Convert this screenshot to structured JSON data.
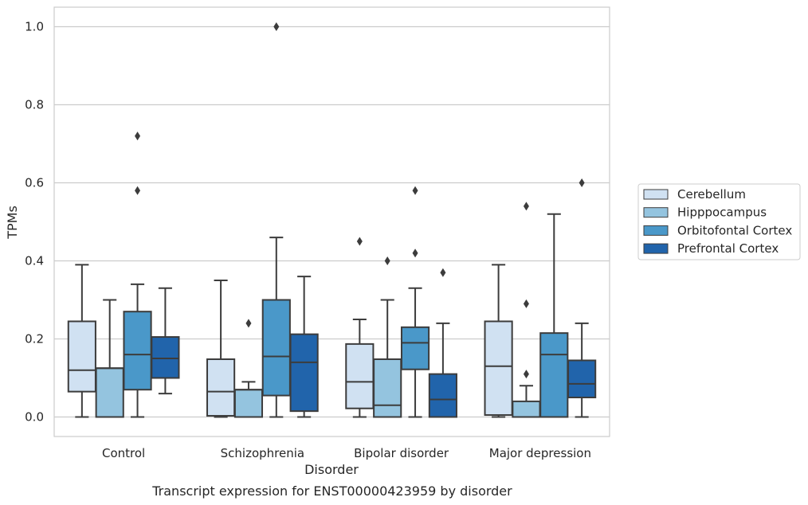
{
  "chart_data": {
    "type": "box",
    "xlabel": "Disorder",
    "ylabel": "TPMs",
    "caption": "Transcript expression for ENST00000423959 by disorder",
    "ylim": [
      -0.05,
      1.05
    ],
    "yticks": [
      "0.0",
      "0.2",
      "0.4",
      "0.6",
      "0.8",
      "1.0"
    ],
    "grid": true,
    "legend_position": "right",
    "categories": [
      "Control",
      "Schizophrenia",
      "Bipolar disorder",
      "Major depression"
    ],
    "series": [
      {
        "name": "Cerebellum",
        "color": "#d0e1f2",
        "boxes": [
          {
            "min": 0.0,
            "q1": 0.065,
            "median": 0.12,
            "q3": 0.245,
            "max": 0.39,
            "outliers": []
          },
          {
            "min": 0.0,
            "q1": 0.003,
            "median": 0.065,
            "q3": 0.148,
            "max": 0.35,
            "outliers": []
          },
          {
            "min": 0.0,
            "q1": 0.022,
            "median": 0.09,
            "q3": 0.187,
            "max": 0.25,
            "outliers": [
              0.45
            ]
          },
          {
            "min": 0.0,
            "q1": 0.005,
            "median": 0.13,
            "q3": 0.245,
            "max": 0.39,
            "outliers": []
          }
        ]
      },
      {
        "name": "Hipppocampus",
        "color": "#94c4df",
        "boxes": [
          {
            "min": 0.0,
            "q1": 0.0,
            "median": 0.125,
            "q3": 0.125,
            "max": 0.3,
            "outliers": []
          },
          {
            "min": 0.0,
            "q1": 0.0,
            "median": 0.07,
            "q3": 0.07,
            "max": 0.09,
            "outliers": [
              0.24
            ]
          },
          {
            "min": 0.0,
            "q1": 0.0,
            "median": 0.03,
            "q3": 0.148,
            "max": 0.3,
            "outliers": [
              0.4
            ]
          },
          {
            "min": 0.0,
            "q1": 0.0,
            "median": 0.0,
            "q3": 0.04,
            "max": 0.08,
            "outliers": [
              0.11,
              0.29,
              0.54
            ]
          }
        ]
      },
      {
        "name": "Orbitofontal Cortex",
        "color": "#4a98c9",
        "boxes": [
          {
            "min": 0.0,
            "q1": 0.07,
            "median": 0.16,
            "q3": 0.27,
            "max": 0.34,
            "outliers": [
              0.58,
              0.72
            ]
          },
          {
            "min": 0.0,
            "q1": 0.055,
            "median": 0.155,
            "q3": 0.3,
            "max": 0.46,
            "outliers": [
              1.0
            ]
          },
          {
            "min": 0.0,
            "q1": 0.122,
            "median": 0.19,
            "q3": 0.23,
            "max": 0.33,
            "outliers": [
              0.42,
              0.58
            ]
          },
          {
            "min": 0.0,
            "q1": 0.0,
            "median": 0.16,
            "q3": 0.215,
            "max": 0.52,
            "outliers": []
          }
        ]
      },
      {
        "name": "Prefrontal Cortex",
        "color": "#2164ab",
        "boxes": [
          {
            "min": 0.06,
            "q1": 0.1,
            "median": 0.15,
            "q3": 0.205,
            "max": 0.33,
            "outliers": []
          },
          {
            "min": 0.0,
            "q1": 0.015,
            "median": 0.14,
            "q3": 0.212,
            "max": 0.36,
            "outliers": []
          },
          {
            "min": 0.0,
            "q1": 0.0,
            "median": 0.045,
            "q3": 0.11,
            "max": 0.24,
            "outliers": [
              0.37
            ]
          },
          {
            "min": 0.0,
            "q1": 0.05,
            "median": 0.085,
            "q3": 0.145,
            "max": 0.24,
            "outliers": [
              0.6
            ]
          }
        ]
      }
    ]
  }
}
